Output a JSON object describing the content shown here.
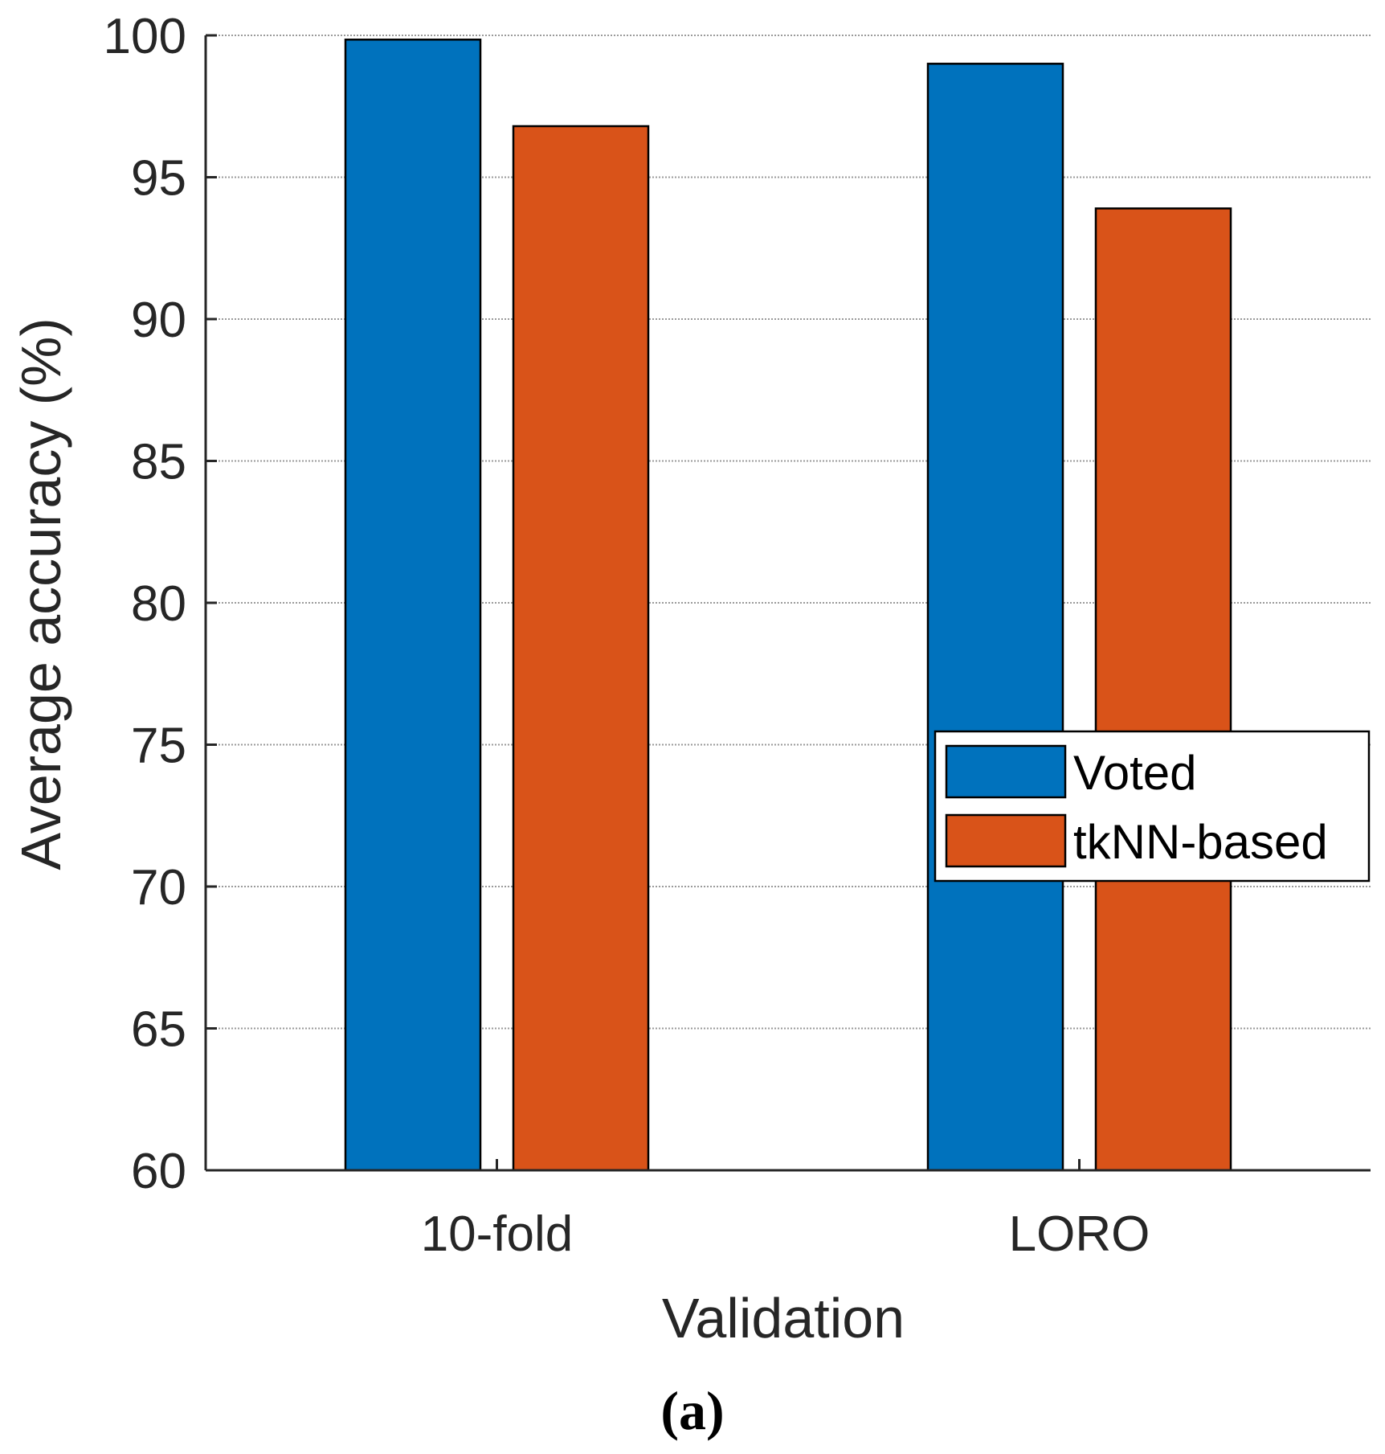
{
  "chart_data": {
    "type": "bar",
    "categories": [
      "10-fold",
      "LORO"
    ],
    "series": [
      {
        "name": "Voted",
        "values": [
          99.85,
          99.0
        ]
      },
      {
        "name": "tkNN-based",
        "values": [
          96.8,
          93.9
        ]
      }
    ],
    "xlabel": "Validation",
    "ylabel": "Average accuracy (%)",
    "ylim": [
      60,
      100
    ],
    "yticks": [
      60,
      65,
      70,
      75,
      80,
      85,
      90,
      95,
      100
    ],
    "grid": true,
    "legend_position": "right"
  },
  "panel_label": "(a)",
  "colors": {
    "series": [
      "#0072BD",
      "#D95319"
    ],
    "axis": "#262626",
    "grid": "#9a9a9a"
  }
}
